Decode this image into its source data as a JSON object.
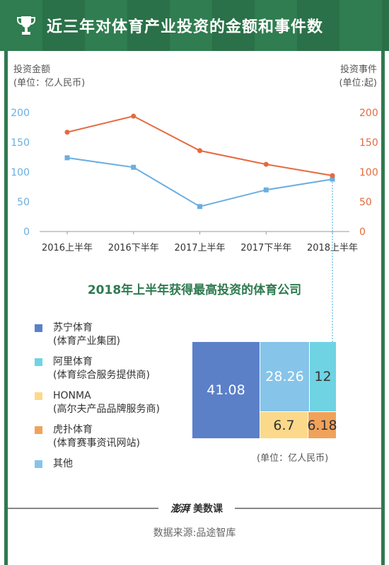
{
  "header": {
    "title": "近三年对体育产业投资的金额和事件数",
    "icon": "trophy-icon"
  },
  "colors": {
    "background": "#2e7a4f",
    "investment_line": "#6baee0",
    "events_line": "#e6693e",
    "title_green": "#2e7a4f"
  },
  "chart_data": [
    {
      "type": "line",
      "categories": [
        "2016上半年",
        "2016下半年",
        "2017上半年",
        "2017下半年",
        "2018上半年"
      ],
      "left_axis_title": [
        "投资金额",
        "(单位：亿人民币)"
      ],
      "right_axis_title": [
        "投资事件",
        "(单位:起)"
      ],
      "left_ticks": [
        "0",
        "50",
        "100",
        "150",
        "200"
      ],
      "right_ticks": [
        "0",
        "50",
        "100",
        "150",
        "200"
      ],
      "ylim": [
        0,
        200
      ],
      "grid": false,
      "series": [
        {
          "name": "",
          "axis": "left",
          "color": "#6baee0",
          "values": [
            124,
            108,
            42,
            70,
            88
          ]
        },
        {
          "name": "",
          "axis": "right",
          "color": "#e6693e",
          "values": [
            167,
            194,
            136,
            113,
            94
          ]
        }
      ]
    },
    {
      "type": "treemap",
      "title": "2018年上半年获得最高投资的体育公司",
      "unit": "(单位：亿人民币)",
      "items": [
        {
          "name": "苏宁体育",
          "desc": "(体育产业集团)",
          "value": "41.08",
          "color": "#5b80c8"
        },
        {
          "name": "阿里体育",
          "desc": "(体育综合服务提供商)",
          "value": "12",
          "color": "#6fd3e3"
        },
        {
          "name": "HONMA",
          "desc": "(高尔夫产品品牌服务商)",
          "value": "6.7",
          "color": "#fcd98a"
        },
        {
          "name": "虎扑体育",
          "desc": "(体育赛事资讯网站)",
          "value": "6.18",
          "color": "#f0a25a"
        },
        {
          "name": "其他",
          "desc": "",
          "value": "28.26",
          "color": "#86c4ea"
        }
      ]
    }
  ],
  "footer": {
    "brand_mark": "澎湃",
    "brand_label": "美数课",
    "source": "数据来源:品途智库"
  }
}
